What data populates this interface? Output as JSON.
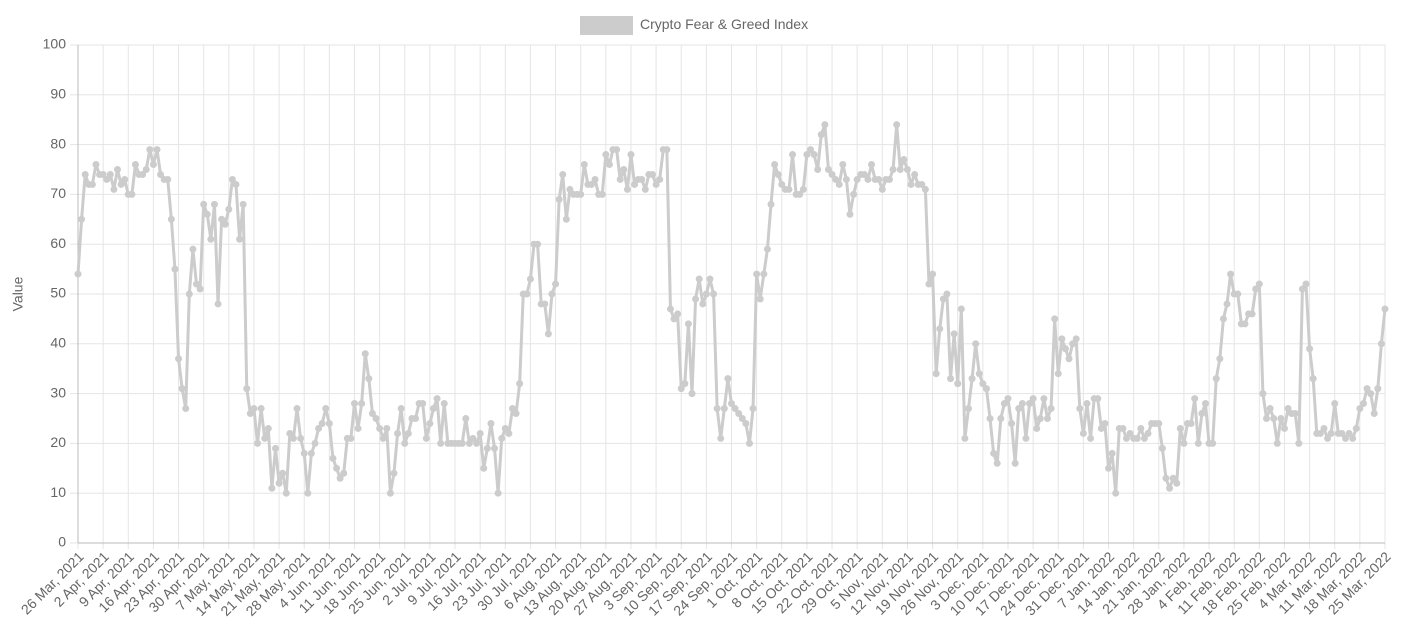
{
  "chart_data": {
    "type": "line",
    "legend_label": "Crypto Fear & Greed Index",
    "ylabel": "Value",
    "color": "#cccccc",
    "grid": true,
    "legend_position": "top",
    "ylim": [
      0,
      100
    ],
    "yticks": [
      0,
      10,
      20,
      30,
      40,
      50,
      60,
      70,
      80,
      90,
      100
    ],
    "categories": [
      "26 Mar, 2021",
      null,
      null,
      null,
      null,
      null,
      null,
      "2 Apr, 2021",
      null,
      null,
      null,
      null,
      null,
      null,
      "9 Apr, 2021",
      null,
      null,
      null,
      null,
      null,
      null,
      "16 Apr, 2021",
      null,
      null,
      null,
      null,
      null,
      null,
      "23 Apr, 2021",
      null,
      null,
      null,
      null,
      null,
      null,
      "30 Apr, 2021",
      null,
      null,
      null,
      null,
      null,
      null,
      "7 May, 2021",
      null,
      null,
      null,
      null,
      null,
      null,
      "14 May, 2021",
      null,
      null,
      null,
      null,
      null,
      null,
      "21 May, 2021",
      null,
      null,
      null,
      null,
      null,
      null,
      "28 May, 2021",
      null,
      null,
      null,
      null,
      null,
      null,
      "4 Jun, 2021",
      null,
      null,
      null,
      null,
      null,
      null,
      "11 Jun, 2021",
      null,
      null,
      null,
      null,
      null,
      null,
      "18 Jun, 2021",
      null,
      null,
      null,
      null,
      null,
      null,
      "25 Jun, 2021",
      null,
      null,
      null,
      null,
      null,
      null,
      "2 Jul, 2021",
      null,
      null,
      null,
      null,
      null,
      null,
      "9 Jul, 2021",
      null,
      null,
      null,
      null,
      null,
      null,
      "16 Jul, 2021",
      null,
      null,
      null,
      null,
      null,
      null,
      "23 Jul, 2021",
      null,
      null,
      null,
      null,
      null,
      null,
      "30 Jul, 2021",
      null,
      null,
      null,
      null,
      null,
      null,
      "6 Aug, 2021",
      null,
      null,
      null,
      null,
      null,
      null,
      "13 Aug, 2021",
      null,
      null,
      null,
      null,
      null,
      null,
      "20 Aug, 2021",
      null,
      null,
      null,
      null,
      null,
      null,
      "27 Aug, 2021",
      null,
      null,
      null,
      null,
      null,
      null,
      "3 Sep, 2021",
      null,
      null,
      null,
      null,
      null,
      null,
      "10 Sep, 2021",
      null,
      null,
      null,
      null,
      null,
      null,
      "17 Sep, 2021",
      null,
      null,
      null,
      null,
      null,
      null,
      "24 Sep, 2021",
      null,
      null,
      null,
      null,
      null,
      null,
      "1 Oct, 2021",
      null,
      null,
      null,
      null,
      null,
      null,
      "8 Oct, 2021",
      null,
      null,
      null,
      null,
      null,
      null,
      "15 Oct, 2021",
      null,
      null,
      null,
      null,
      null,
      null,
      "22 Oct, 2021",
      null,
      null,
      null,
      null,
      null,
      null,
      "29 Oct, 2021",
      null,
      null,
      null,
      null,
      null,
      null,
      "5 Nov, 2021",
      null,
      null,
      null,
      null,
      null,
      null,
      "12 Nov, 2021",
      null,
      null,
      null,
      null,
      null,
      null,
      "19 Nov, 2021",
      null,
      null,
      null,
      null,
      null,
      null,
      "26 Nov, 2021",
      null,
      null,
      null,
      null,
      null,
      null,
      "3 Dec, 2021",
      null,
      null,
      null,
      null,
      null,
      null,
      "10 Dec, 2021",
      null,
      null,
      null,
      null,
      null,
      null,
      "17 Dec, 2021",
      null,
      null,
      null,
      null,
      null,
      null,
      "24 Dec, 2021",
      null,
      null,
      null,
      null,
      null,
      null,
      "31 Dec, 2021",
      null,
      null,
      null,
      null,
      null,
      null,
      "7 Jan, 2022",
      null,
      null,
      null,
      null,
      null,
      null,
      "14 Jan, 2022",
      null,
      null,
      null,
      null,
      null,
      null,
      "21 Jan, 2022",
      null,
      null,
      null,
      null,
      null,
      null,
      "28 Jan, 2022",
      null,
      null,
      null,
      null,
      null,
      null,
      "4 Feb, 2022",
      null,
      null,
      null,
      null,
      null,
      null,
      "11 Feb, 2022",
      null,
      null,
      null,
      null,
      null,
      null,
      "18 Feb, 2022",
      null,
      null,
      null,
      null,
      null,
      null,
      "25 Feb, 2022",
      null,
      null,
      null,
      null,
      null,
      null,
      "4 Mar, 2022",
      null,
      null,
      null,
      null,
      null,
      null,
      "11 Mar, 2022",
      null,
      null,
      null,
      null,
      null,
      null,
      "18 Mar, 2022",
      null,
      null,
      null,
      null,
      null,
      null,
      "25 Mar, 2022"
    ],
    "values": [
      54,
      65,
      74,
      72,
      72,
      76,
      74,
      74,
      73,
      74,
      71,
      75,
      72,
      73,
      70,
      70,
      76,
      74,
      74,
      75,
      79,
      76,
      79,
      74,
      73,
      73,
      65,
      55,
      37,
      31,
      27,
      50,
      59,
      52,
      51,
      68,
      66,
      61,
      68,
      48,
      65,
      64,
      67,
      73,
      72,
      61,
      68,
      31,
      26,
      27,
      20,
      27,
      21,
      23,
      11,
      19,
      12,
      14,
      10,
      22,
      21,
      27,
      21,
      18,
      10,
      18,
      20,
      23,
      24,
      27,
      24,
      17,
      15,
      13,
      14,
      21,
      21,
      28,
      23,
      28,
      38,
      33,
      26,
      25,
      23,
      21,
      23,
      10,
      14,
      22,
      27,
      20,
      22,
      25,
      25,
      28,
      28,
      21,
      24,
      27,
      29,
      20,
      28,
      20,
      20,
      20,
      20,
      20,
      25,
      20,
      21,
      20,
      22,
      15,
      19,
      24,
      19,
      10,
      21,
      23,
      22,
      27,
      26,
      32,
      50,
      50,
      53,
      60,
      60,
      48,
      48,
      42,
      50,
      52,
      69,
      74,
      65,
      71,
      70,
      70,
      70,
      76,
      72,
      72,
      73,
      70,
      70,
      78,
      76,
      79,
      79,
      73,
      75,
      71,
      78,
      72,
      73,
      73,
      71,
      74,
      74,
      72,
      73,
      79,
      79,
      47,
      45,
      46,
      31,
      32,
      44,
      30,
      49,
      53,
      48,
      50,
      53,
      50,
      27,
      21,
      27,
      33,
      28,
      27,
      26,
      25,
      24,
      20,
      27,
      54,
      49,
      54,
      59,
      68,
      76,
      74,
      72,
      71,
      71,
      78,
      70,
      70,
      71,
      78,
      79,
      78,
      75,
      82,
      84,
      75,
      74,
      73,
      72,
      76,
      73,
      66,
      70,
      73,
      74,
      74,
      73,
      76,
      73,
      73,
      71,
      73,
      73,
      75,
      84,
      75,
      77,
      75,
      72,
      74,
      72,
      72,
      71,
      52,
      54,
      34,
      43,
      49,
      50,
      33,
      42,
      32,
      47,
      21,
      27,
      33,
      40,
      34,
      32,
      31,
      25,
      18,
      16,
      25,
      28,
      29,
      24,
      16,
      27,
      28,
      21,
      28,
      29,
      23,
      25,
      29,
      25,
      27,
      45,
      34,
      41,
      39,
      37,
      40,
      41,
      27,
      22,
      28,
      21,
      29,
      29,
      23,
      24,
      15,
      18,
      10,
      23,
      23,
      21,
      22,
      21,
      21,
      23,
      21,
      22,
      24,
      24,
      24,
      19,
      13,
      11,
      13,
      12,
      23,
      20,
      24,
      24,
      29,
      20,
      26,
      28,
      20,
      20,
      33,
      37,
      45,
      48,
      54,
      50,
      50,
      44,
      44,
      46,
      46,
      51,
      52,
      30,
      25,
      27,
      25,
      20,
      25,
      23,
      27,
      26,
      26,
      20,
      51,
      52,
      39,
      33,
      22,
      22,
      23,
      21,
      22,
      28,
      22,
      22,
      21,
      22,
      21,
      23,
      27,
      28,
      31,
      30,
      26,
      31,
      40,
      47
    ]
  }
}
